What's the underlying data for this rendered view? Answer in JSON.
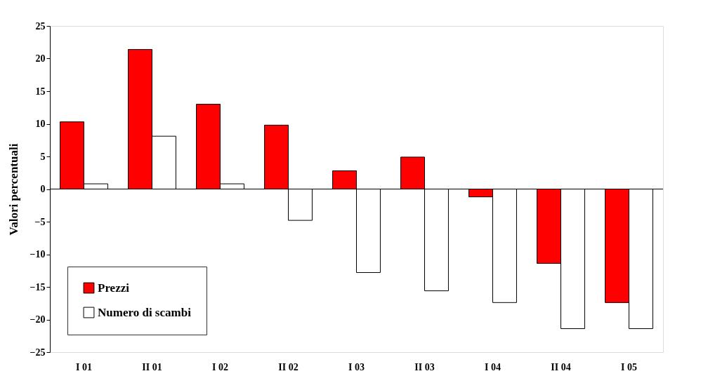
{
  "chart_data": {
    "type": "bar",
    "ylabel": "Valori percentuali",
    "categories": [
      "I 01",
      "II 01",
      "I 02",
      "II 02",
      "I 03",
      "II 03",
      "I 04",
      "II 04",
      "I 05"
    ],
    "series": [
      {
        "name": "Prezzi",
        "color": "#ff0000",
        "values": [
          10.3,
          21.4,
          13.0,
          9.8,
          2.8,
          4.9,
          -1.2,
          -11.4,
          -17.4
        ]
      },
      {
        "name": "Numero di scambi",
        "color": "#ffffff",
        "values": [
          0.8,
          8.1,
          0.8,
          -4.8,
          -12.8,
          -15.6,
          -17.4,
          -21.4,
          -21.4
        ]
      }
    ],
    "ylim": [
      -25,
      25
    ],
    "yticks": [
      -25,
      -20,
      -15,
      -10,
      -5,
      0,
      5,
      10,
      15,
      20,
      25
    ],
    "legend": "bottom left"
  }
}
